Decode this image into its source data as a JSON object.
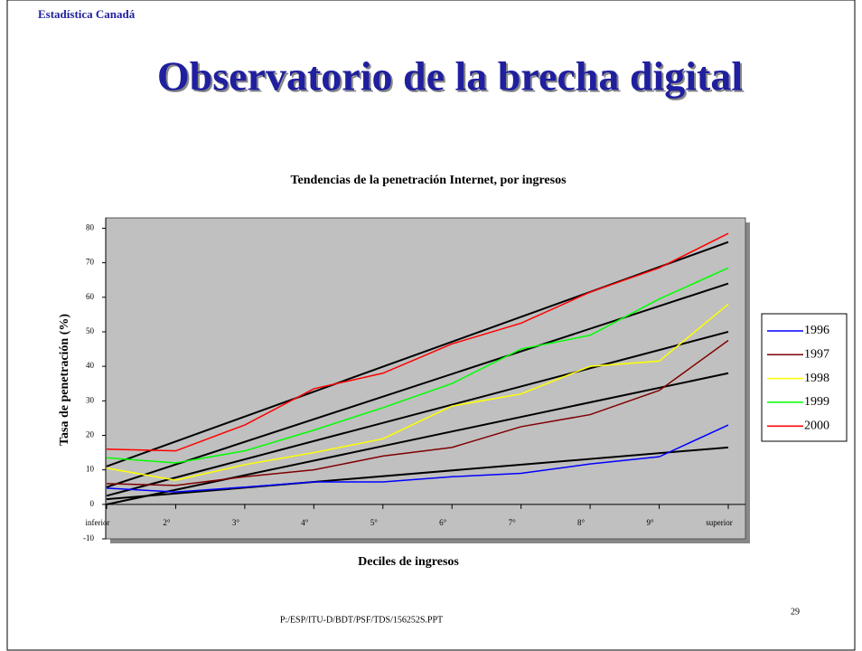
{
  "header": "Estadística Canadá",
  "slide_title": "Observatorio de la brecha digital",
  "footer": "P:/ESP/ITU-D/BDT/PSF/TDS/156252S.PPT",
  "page_number": "29",
  "chart_data": {
    "type": "line",
    "title": "Tendencias de la penetración Internet, por ingresos",
    "x_label": "Deciles de ingresos",
    "y_label": "Tasa de penetración (%)",
    "categories": [
      "inferior",
      "2°",
      "3°",
      "4°",
      "5°",
      "6°",
      "7°",
      "8°",
      "9°",
      "superior"
    ],
    "ylim": [
      -10,
      83
    ],
    "yticks": [
      -10,
      0,
      10,
      20,
      30,
      40,
      50,
      60,
      70,
      80
    ],
    "series": [
      {
        "name": "1996",
        "color": "#0000ff",
        "values": [
          4.7,
          3.6,
          5,
          6.5,
          6.5,
          8,
          9,
          11.7,
          13.8,
          23
        ],
        "trend": [
          1.5,
          16.5
        ]
      },
      {
        "name": "1997",
        "color": "#800000",
        "values": [
          6,
          5.5,
          8,
          10,
          14,
          16.5,
          22.5,
          26,
          33,
          47.5
        ],
        "trend": [
          0,
          38
        ]
      },
      {
        "name": "1998",
        "color": "#ffff00",
        "values": [
          10.5,
          7,
          11.5,
          15,
          19,
          28.5,
          32,
          40,
          41.5,
          58
        ],
        "trend": [
          2.5,
          50
        ]
      },
      {
        "name": "1999",
        "color": "#00ff00",
        "values": [
          13.5,
          12,
          15.5,
          21.5,
          28,
          35,
          45,
          49,
          59.5,
          68.5
        ],
        "trend": [
          5,
          64
        ]
      },
      {
        "name": "2000",
        "color": "#ff0000",
        "values": [
          16,
          15.5,
          23,
          33.5,
          38,
          46.5,
          52.5,
          61.5,
          68.5,
          78.5
        ],
        "trend": [
          11,
          76
        ]
      }
    ],
    "trend_color": "#000000",
    "plot_background": "#c0c0c0",
    "legend": "right"
  }
}
